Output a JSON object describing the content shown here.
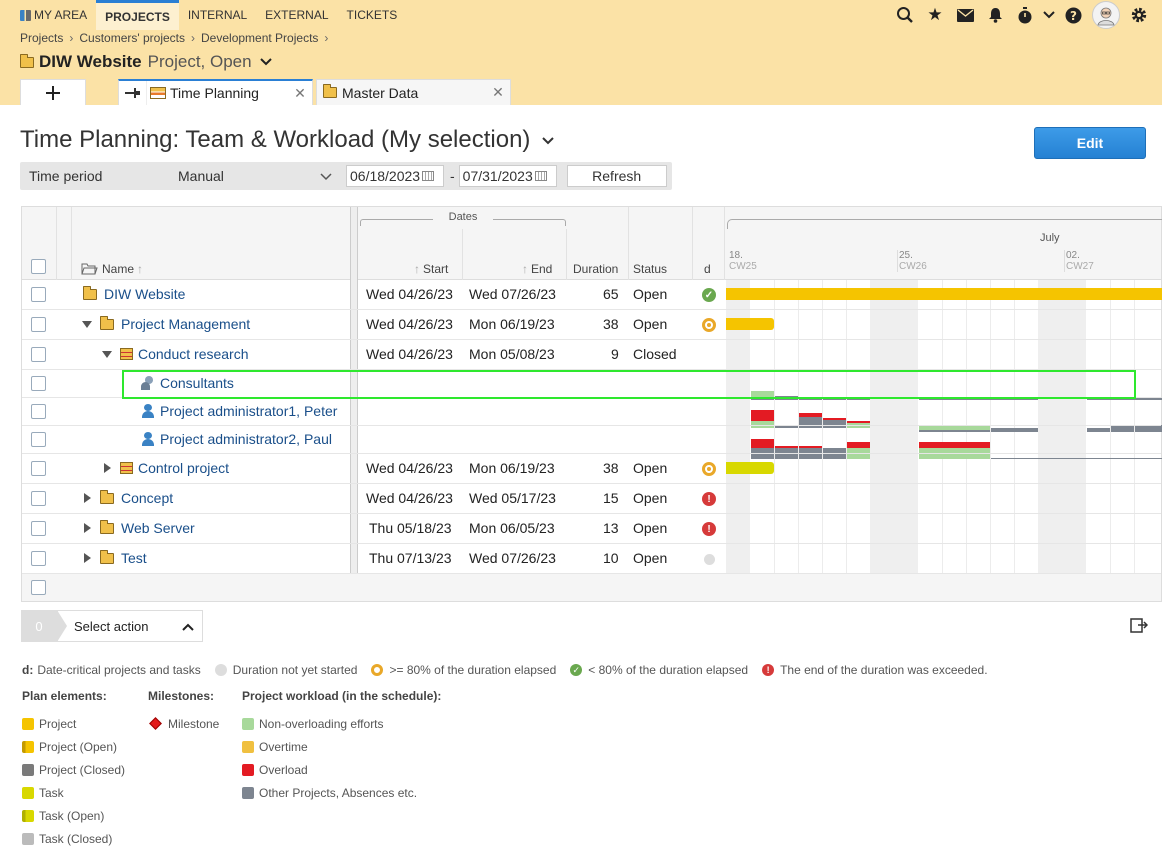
{
  "topnav": [
    {
      "label": "MY AREA",
      "active": false
    },
    {
      "label": "PROJECTS",
      "active": true
    },
    {
      "label": "INTERNAL",
      "active": false
    },
    {
      "label": "EXTERNAL",
      "active": false
    },
    {
      "label": "TICKETS",
      "active": false
    }
  ],
  "breadcrumb": [
    "Projects",
    "Customers' projects",
    "Development Projects"
  ],
  "project": {
    "name": "DIW Website",
    "meta": "Project, Open"
  },
  "tabs": {
    "active_label": "Time Planning",
    "other_label": "Master Data"
  },
  "page": {
    "title": "Time Planning: Team & Workload (My selection)",
    "edit_label": "Edit"
  },
  "filter": {
    "label": "Time period",
    "mode": "Manual",
    "start": "06/18/2023",
    "end": "07/31/2023",
    "refresh": "Refresh"
  },
  "columns": {
    "dates_group": "Dates",
    "name": "Name",
    "start": "Start",
    "end": "End",
    "duration": "Duration",
    "status": "Status",
    "d": "d"
  },
  "timeline": {
    "month": "July",
    "weeks": [
      {
        "day": "18.",
        "cw": "CW25"
      },
      {
        "day": "25.",
        "cw": "CW26"
      },
      {
        "day": "02.",
        "cw": "CW27"
      }
    ]
  },
  "rows": [
    {
      "name": "DIW Website",
      "start": "Wed 04/26/23",
      "end": "Wed 07/26/23",
      "duration": "65",
      "status": "Open",
      "d": "ok"
    },
    {
      "name": "Project Management",
      "start": "Wed 04/26/23",
      "end": "Mon 06/19/23",
      "duration": "38",
      "status": "Open",
      "d": "ring"
    },
    {
      "name": "Conduct research",
      "start": "Wed 04/26/23",
      "end": "Mon 05/08/23",
      "duration": "9",
      "status": "Closed",
      "d": ""
    },
    {
      "name": "Consultants",
      "start": "",
      "end": "",
      "duration": "",
      "status": "",
      "d": ""
    },
    {
      "name": "Project administrator1, Peter",
      "start": "",
      "end": "",
      "duration": "",
      "status": "",
      "d": ""
    },
    {
      "name": "Project administrator2, Paul",
      "start": "",
      "end": "",
      "duration": "",
      "status": "",
      "d": ""
    },
    {
      "name": "Control project",
      "start": "Wed 04/26/23",
      "end": "Mon 06/19/23",
      "duration": "38",
      "status": "Open",
      "d": "ring"
    },
    {
      "name": "Concept",
      "start": "Wed 04/26/23",
      "end": "Wed 05/17/23",
      "duration": "15",
      "status": "Open",
      "d": "err"
    },
    {
      "name": "Web Server",
      "start": "Thu 05/18/23",
      "end": "Mon 06/05/23",
      "duration": "13",
      "status": "Open",
      "d": "err"
    },
    {
      "name": "Test",
      "start": "Thu 07/13/23",
      "end": "Wed 07/26/23",
      "duration": "10",
      "status": "Open",
      "d": "grey"
    }
  ],
  "actions": {
    "count": "0",
    "label": "Select action"
  },
  "legend": {
    "d_label": "d:",
    "d_text": "Date-critical projects and tasks",
    "not_started": "Duration not yet started",
    "gte80": ">= 80% of the duration elapsed",
    "lt80": "< 80% of the duration elapsed",
    "exceeded": "The end of the duration was exceeded.",
    "plan_head": "Plan elements:",
    "plan_items": [
      "Project",
      "Project (Open)",
      "Project (Closed)",
      "Task",
      "Task (Open)",
      "Task (Closed)"
    ],
    "milestones_head": "Milestones:",
    "milestone_item": "Milestone",
    "workload_head": "Project workload (in the schedule):",
    "workload_items": [
      "Non-overloading efforts",
      "Overtime",
      "Overload",
      "Other Projects, Absences etc."
    ]
  },
  "colors": {
    "project": "#f5c400",
    "task": "#d8d800",
    "closed": "#7a7a7a",
    "task_closed": "#bbbbbb",
    "non_overloading": "#a8d99b",
    "overtime": "#f0c040",
    "overload": "#e31b23",
    "other": "#7d8590"
  }
}
